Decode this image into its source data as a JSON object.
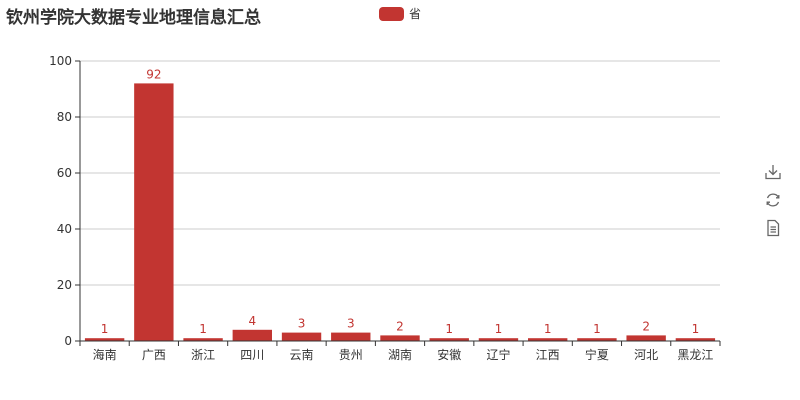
{
  "title": "钦州学院大数据专业地理信息汇总",
  "legend": {
    "items": [
      {
        "label": "省",
        "color": "#c23531"
      }
    ]
  },
  "toolbox": {
    "icons": [
      "download-icon",
      "refresh-icon",
      "data-view-icon"
    ]
  },
  "chart_data": {
    "type": "bar",
    "title": "钦州学院大数据专业地理信息汇总",
    "categories": [
      "海南",
      "广西",
      "浙江",
      "四川",
      "云南",
      "贵州",
      "湖南",
      "安徽",
      "辽宁",
      "江西",
      "宁夏",
      "河北",
      "黑龙江"
    ],
    "series": [
      {
        "name": "省",
        "color": "#c23531",
        "values": [
          1,
          92,
          1,
          4,
          3,
          3,
          2,
          1,
          1,
          1,
          1,
          2,
          1
        ]
      }
    ],
    "yticks": [
      0,
      20,
      40,
      60,
      80,
      100
    ],
    "ylim": [
      0,
      100
    ],
    "grid": true,
    "data_labels": true,
    "legend_position": "top-center",
    "xlabel": "",
    "ylabel": ""
  }
}
